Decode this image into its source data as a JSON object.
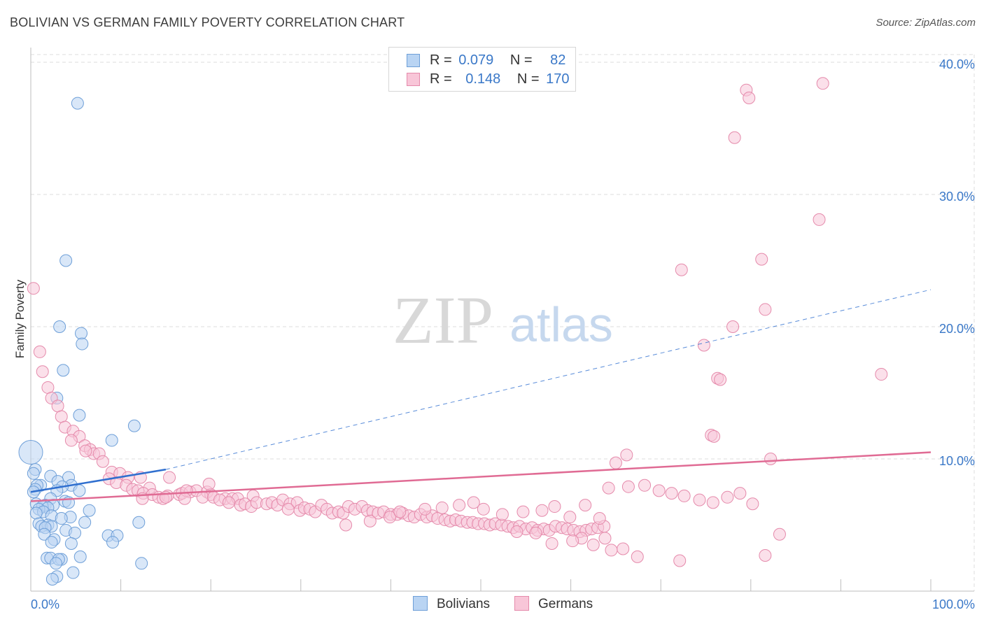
{
  "title": "BOLIVIAN VS GERMAN FAMILY POVERTY CORRELATION CHART",
  "source": "Source: ZipAtlas.com",
  "watermark": {
    "zip": "ZIP",
    "atlas": "atlas"
  },
  "legend_top": [
    {
      "r_label": "R =",
      "r_value": "0.079",
      "n_label": "N =",
      "n_value": "82"
    },
    {
      "r_label": "R =",
      "r_value": "0.148",
      "n_label": "N =",
      "n_value": "170"
    }
  ],
  "legend_bottom": [
    "Bolivians",
    "Germans"
  ],
  "colors": {
    "bolivians_fill": "#b9d4f3",
    "bolivians_stroke": "#6e9fd8",
    "bolivians_line": "#2f6fcf",
    "germans_fill": "#f8c6d8",
    "germans_stroke": "#e58aab",
    "germans_line": "#e06b94",
    "tick_label": "#3a78c8",
    "grid": "#dddddd"
  },
  "chart_data": {
    "type": "scatter",
    "title": "BOLIVIAN VS GERMAN FAMILY POVERTY CORRELATION CHART",
    "xlabel": "",
    "ylabel": "Family Poverty",
    "xlim": [
      0,
      100
    ],
    "ylim": [
      0,
      40
    ],
    "x_tick_labels": [
      "0.0%",
      "100.0%"
    ],
    "y_ticks": [
      10,
      20,
      30,
      40
    ],
    "y_tick_labels": [
      "10.0%",
      "20.0%",
      "30.0%",
      "40.0%"
    ],
    "grid": true,
    "series": [
      {
        "name": "Bolivians",
        "r": 0.079,
        "n": 82,
        "trend": {
          "solid": [
            [
              0,
              7.5
            ],
            [
              15,
              9.2
            ]
          ],
          "dashed": [
            [
              15,
              9.2
            ],
            [
              100,
              22.8
            ]
          ]
        },
        "points": [
          [
            5.2,
            36.9
          ],
          [
            3.9,
            25.0
          ],
          [
            3.2,
            20.0
          ],
          [
            5.6,
            19.5
          ],
          [
            5.7,
            18.7
          ],
          [
            3.6,
            16.7
          ],
          [
            2.9,
            14.6
          ],
          [
            5.4,
            13.3
          ],
          [
            11.5,
            12.5
          ],
          [
            9.0,
            11.4
          ],
          [
            0.0,
            10.5
          ],
          [
            0.5,
            9.2
          ],
          [
            0.3,
            8.9
          ],
          [
            2.2,
            8.7
          ],
          [
            4.2,
            8.6
          ],
          [
            3.0,
            8.3
          ],
          [
            1.1,
            8.0
          ],
          [
            0.7,
            8.0
          ],
          [
            4.5,
            8.0
          ],
          [
            3.5,
            7.9
          ],
          [
            0.5,
            7.7
          ],
          [
            2.9,
            7.6
          ],
          [
            0.3,
            7.5
          ],
          [
            5.4,
            7.6
          ],
          [
            2.2,
            7.0
          ],
          [
            3.8,
            6.8
          ],
          [
            4.2,
            6.7
          ],
          [
            0.6,
            6.6
          ],
          [
            1.6,
            6.5
          ],
          [
            2.5,
            6.5
          ],
          [
            1.3,
            6.4
          ],
          [
            1.9,
            6.3
          ],
          [
            0.9,
            6.2
          ],
          [
            6.5,
            6.1
          ],
          [
            1.4,
            6.0
          ],
          [
            0.6,
            5.9
          ],
          [
            2.3,
            5.7
          ],
          [
            4.4,
            5.6
          ],
          [
            3.4,
            5.5
          ],
          [
            6.0,
            5.2
          ],
          [
            0.9,
            5.1
          ],
          [
            1.9,
            5.0
          ],
          [
            1.2,
            4.9
          ],
          [
            2.3,
            4.9
          ],
          [
            1.6,
            4.8
          ],
          [
            12.0,
            5.2
          ],
          [
            3.9,
            4.6
          ],
          [
            4.9,
            4.4
          ],
          [
            1.5,
            4.3
          ],
          [
            8.6,
            4.2
          ],
          [
            9.6,
            4.2
          ],
          [
            2.6,
            3.9
          ],
          [
            2.3,
            3.7
          ],
          [
            4.5,
            3.6
          ],
          [
            9.1,
            3.7
          ],
          [
            1.8,
            2.5
          ],
          [
            2.2,
            2.5
          ],
          [
            3.4,
            2.4
          ],
          [
            3.1,
            2.4
          ],
          [
            5.5,
            2.6
          ],
          [
            12.3,
            2.1
          ],
          [
            2.8,
            2.1
          ],
          [
            4.7,
            1.4
          ],
          [
            2.9,
            1.1
          ],
          [
            2.4,
            0.9
          ]
        ]
      },
      {
        "name": "Germans",
        "r": 0.148,
        "n": 170,
        "trend": {
          "solid": [
            [
              0,
              6.8
            ],
            [
              100,
              10.5
            ]
          ]
        },
        "points": [
          [
            88.0,
            38.4
          ],
          [
            79.5,
            37.9
          ],
          [
            79.8,
            37.3
          ],
          [
            78.2,
            34.3
          ],
          [
            87.6,
            28.1
          ],
          [
            81.2,
            25.1
          ],
          [
            72.3,
            24.3
          ],
          [
            81.6,
            21.3
          ],
          [
            78.0,
            20.0
          ],
          [
            74.8,
            18.6
          ],
          [
            94.5,
            16.4
          ],
          [
            76.3,
            16.1
          ],
          [
            76.6,
            16.0
          ],
          [
            75.6,
            11.8
          ],
          [
            75.9,
            11.7
          ],
          [
            82.2,
            10.0
          ],
          [
            66.2,
            10.3
          ],
          [
            65.0,
            9.7
          ],
          [
            0.3,
            22.9
          ],
          [
            1.0,
            18.1
          ],
          [
            1.3,
            16.6
          ],
          [
            1.9,
            15.4
          ],
          [
            2.3,
            14.6
          ],
          [
            3.0,
            14.0
          ],
          [
            3.4,
            13.2
          ],
          [
            3.8,
            12.4
          ],
          [
            4.7,
            12.1
          ],
          [
            5.4,
            11.7
          ],
          [
            4.5,
            11.4
          ],
          [
            6.0,
            11.0
          ],
          [
            6.6,
            10.7
          ],
          [
            7.0,
            10.4
          ],
          [
            6.1,
            10.6
          ],
          [
            7.6,
            10.4
          ],
          [
            8.0,
            9.8
          ],
          [
            9.0,
            9.0
          ],
          [
            9.9,
            8.9
          ],
          [
            8.7,
            8.5
          ],
          [
            10.8,
            8.6
          ],
          [
            9.5,
            8.2
          ],
          [
            12.2,
            8.6
          ],
          [
            15.4,
            8.6
          ],
          [
            10.6,
            8.0
          ],
          [
            13.2,
            7.8
          ],
          [
            11.3,
            7.7
          ],
          [
            11.9,
            7.6
          ],
          [
            12.5,
            7.4
          ],
          [
            13.5,
            7.3
          ],
          [
            14.2,
            7.1
          ],
          [
            15.2,
            7.2
          ],
          [
            16.5,
            7.3
          ],
          [
            16.8,
            7.4
          ],
          [
            17.7,
            7.5
          ],
          [
            18.4,
            7.6
          ],
          [
            17.3,
            7.6
          ],
          [
            19.6,
            7.5
          ],
          [
            20.0,
            7.3
          ],
          [
            19.1,
            7.1
          ],
          [
            20.3,
            7.1
          ],
          [
            21.6,
            7.0
          ],
          [
            22.4,
            7.0
          ],
          [
            23.0,
            7.0
          ],
          [
            24.7,
            7.2
          ],
          [
            19.8,
            8.1
          ],
          [
            12.4,
            7.0
          ],
          [
            14.7,
            7.0
          ],
          [
            15.0,
            7.1
          ],
          [
            17.1,
            7.0
          ],
          [
            21.0,
            6.9
          ],
          [
            22.0,
            6.7
          ],
          [
            23.3,
            6.5
          ],
          [
            23.8,
            6.6
          ],
          [
            24.5,
            6.4
          ],
          [
            25.1,
            6.7
          ],
          [
            26.2,
            6.6
          ],
          [
            26.8,
            6.7
          ],
          [
            27.4,
            6.5
          ],
          [
            28.0,
            6.9
          ],
          [
            28.8,
            6.6
          ],
          [
            29.6,
            6.7
          ],
          [
            28.6,
            6.2
          ],
          [
            29.9,
            6.1
          ],
          [
            30.4,
            6.3
          ],
          [
            31.0,
            6.2
          ],
          [
            31.6,
            6.0
          ],
          [
            32.3,
            6.5
          ],
          [
            32.9,
            6.2
          ],
          [
            33.5,
            5.9
          ],
          [
            34.2,
            6.0
          ],
          [
            34.7,
            5.9
          ],
          [
            35.3,
            6.4
          ],
          [
            36.0,
            6.2
          ],
          [
            36.8,
            6.4
          ],
          [
            37.4,
            6.1
          ],
          [
            38.0,
            6.0
          ],
          [
            38.6,
            5.9
          ],
          [
            39.2,
            6.0
          ],
          [
            40.0,
            5.8
          ],
          [
            40.7,
            5.8
          ],
          [
            41.3,
            5.9
          ],
          [
            42.0,
            5.7
          ],
          [
            42.6,
            5.6
          ],
          [
            43.3,
            5.8
          ],
          [
            44.0,
            5.6
          ],
          [
            44.6,
            5.7
          ],
          [
            45.2,
            5.5
          ],
          [
            46.0,
            5.4
          ],
          [
            46.6,
            5.3
          ],
          [
            47.2,
            5.4
          ],
          [
            47.8,
            5.3
          ],
          [
            48.5,
            5.2
          ],
          [
            49.1,
            5.2
          ],
          [
            49.7,
            5.1
          ],
          [
            50.4,
            5.1
          ],
          [
            51.0,
            5.0
          ],
          [
            51.6,
            5.1
          ],
          [
            52.3,
            5.0
          ],
          [
            53.0,
            4.9
          ],
          [
            53.6,
            4.8
          ],
          [
            54.3,
            4.9
          ],
          [
            55.0,
            4.7
          ],
          [
            55.7,
            4.8
          ],
          [
            56.3,
            4.6
          ],
          [
            57.0,
            4.7
          ],
          [
            57.6,
            4.6
          ],
          [
            58.3,
            4.9
          ],
          [
            59.0,
            4.8
          ],
          [
            59.6,
            4.7
          ],
          [
            60.3,
            4.6
          ],
          [
            61.0,
            4.5
          ],
          [
            61.7,
            4.6
          ],
          [
            62.3,
            4.7
          ],
          [
            63.0,
            4.8
          ],
          [
            63.7,
            4.9
          ],
          [
            35.0,
            5.0
          ],
          [
            37.7,
            5.3
          ],
          [
            39.9,
            5.6
          ],
          [
            41.0,
            6.0
          ],
          [
            43.8,
            6.2
          ],
          [
            45.7,
            6.3
          ],
          [
            47.6,
            6.5
          ],
          [
            49.2,
            6.7
          ],
          [
            50.3,
            6.2
          ],
          [
            52.4,
            5.8
          ],
          [
            54.7,
            6.0
          ],
          [
            56.8,
            6.1
          ],
          [
            58.2,
            6.4
          ],
          [
            59.9,
            5.6
          ],
          [
            61.6,
            6.5
          ],
          [
            63.2,
            5.5
          ],
          [
            64.2,
            7.8
          ],
          [
            66.4,
            7.9
          ],
          [
            68.2,
            8.0
          ],
          [
            69.8,
            7.6
          ],
          [
            71.2,
            7.4
          ],
          [
            72.6,
            7.2
          ],
          [
            74.3,
            6.9
          ],
          [
            75.8,
            6.7
          ],
          [
            77.4,
            7.1
          ],
          [
            78.8,
            7.4
          ],
          [
            80.2,
            6.6
          ],
          [
            83.2,
            4.3
          ],
          [
            81.6,
            2.7
          ],
          [
            72.1,
            2.3
          ],
          [
            67.4,
            2.6
          ],
          [
            65.8,
            3.2
          ],
          [
            64.5,
            3.1
          ],
          [
            63.8,
            4.0
          ],
          [
            62.5,
            3.5
          ],
          [
            61.2,
            4.0
          ],
          [
            60.2,
            3.8
          ],
          [
            57.9,
            3.6
          ],
          [
            56.1,
            4.4
          ],
          [
            54.0,
            4.5
          ]
        ]
      }
    ]
  }
}
